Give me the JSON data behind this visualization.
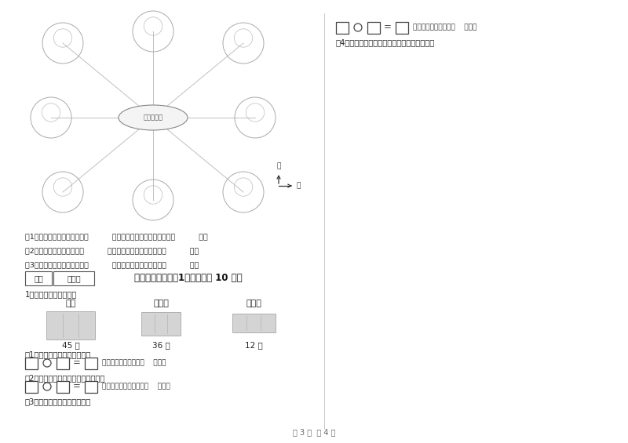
{
  "bg_color": "#ffffff",
  "forest_club_label": "森林信乐部",
  "direction_bei": "北",
  "direction_dong": "东",
  "q_dir1": "（1）小笼住在森林信乐部的（          ）面，小鸡住在森林信乐部的（          ）面",
  "q_dir2": "（2）小兔子家的东北面是（          ），森林信乐部的西北面是（          ）。",
  "q_dir3": "（3）猴子家在森林信乐部的（          ）面，小狗家在猴子家的（          ）面",
  "section_label_defen": "得分",
  "section_label_pingj": "评卷人",
  "section_title": "十一、附加题（共1大题，共计 10 分）",
  "sub_title": "1、根据图片信息解题。",
  "vehicle_labels": [
    "卡车",
    "面包车",
    "大客车"
  ],
  "vehicle_counts": [
    "45 辆",
    "36 辆",
    "12 辆"
  ],
  "q1": "（1）卡车比面包车多多少辆？",
  "q1_ans": "答：卡车比面包车多（    ）辆。",
  "q2": "（2）面包车和大客车一共有多少辆？",
  "q2_ans": "答：面包车和大客车共（    ）辆。",
  "q3": "（3）大客车比卡车少多少辆？",
  "q3_ans": "答：大客车比卡车少（    ）辆。",
  "q4": "（4）你还能提出什么数学问题并列式解答吗？",
  "page_num": "第 3 页  共 4 页"
}
